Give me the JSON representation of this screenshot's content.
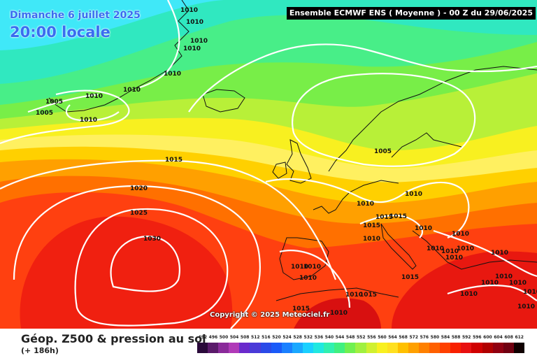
{
  "header": {
    "date": "Dimanche 6 juillet 2025",
    "time": "20:00 locale",
    "model": "Ensemble ECMWF ENS  ( Moyenne )  -  00 Z du 29/06/2025"
  },
  "copyright": "Copyright © 2025 Meteociel.fr",
  "footer": {
    "title": "Géop. Z500 & pression au sol",
    "subtitle": "(+ 186h)"
  },
  "legend": {
    "values": [
      "492",
      "496",
      "500",
      "504",
      "508",
      "512",
      "516",
      "520",
      "524",
      "528",
      "532",
      "536",
      "540",
      "544",
      "548",
      "552",
      "556",
      "560",
      "564",
      "568",
      "572",
      "576",
      "580",
      "584",
      "588",
      "592",
      "596",
      "600",
      "604",
      "608",
      "612"
    ],
    "colors": [
      "#2a0a3a",
      "#5a1a6a",
      "#8a2a9a",
      "#b03ab8",
      "#6a2acc",
      "#4a3ad8",
      "#2a4ae8",
      "#1a5af8",
      "#1a80ff",
      "#1aa8ff",
      "#1ad0ff",
      "#20e8e0",
      "#30f0b0",
      "#40f080",
      "#70f050",
      "#a0f040",
      "#d0f030",
      "#f8f020",
      "#ffe020",
      "#ffc000",
      "#ffa000",
      "#ff8000",
      "#ff6000",
      "#ff4000",
      "#f82000",
      "#e81010",
      "#d00000",
      "#b00000",
      "#900010",
      "#700010",
      "#100000"
    ]
  },
  "isobar_labels": [
    {
      "text": "1010"
    },
    {
      "text": "1010"
    },
    {
      "text": "1010"
    },
    {
      "text": "1010"
    },
    {
      "text": "1010"
    },
    {
      "text": "1010"
    },
    {
      "text": "1010"
    },
    {
      "text": "1005"
    },
    {
      "text": "1005"
    },
    {
      "text": "1010"
    },
    {
      "text": "1015"
    },
    {
      "text": "1020"
    },
    {
      "text": "1025"
    },
    {
      "text": "1030"
    },
    {
      "text": "1005"
    },
    {
      "text": "1010"
    },
    {
      "text": "1010"
    },
    {
      "text": "1015"
    },
    {
      "text": "1015"
    },
    {
      "text": "1015"
    },
    {
      "text": "1010"
    },
    {
      "text": "1010"
    },
    {
      "text": "1010"
    },
    {
      "text": "1010"
    },
    {
      "text": "1010"
    },
    {
      "text": "1010"
    },
    {
      "text": "1010"
    },
    {
      "text": "1010"
    },
    {
      "text": "1010"
    },
    {
      "text": "1010"
    },
    {
      "text": "1010"
    },
    {
      "text": "1015"
    },
    {
      "text": "1010"
    },
    {
      "text": "1015"
    },
    {
      "text": "1015"
    },
    {
      "text": "1010"
    },
    {
      "text": "1010"
    },
    {
      "text": "1010"
    },
    {
      "text": "1010"
    },
    {
      "text": "1010"
    },
    {
      "text": "1010"
    },
    {
      "text": "1010"
    }
  ]
}
